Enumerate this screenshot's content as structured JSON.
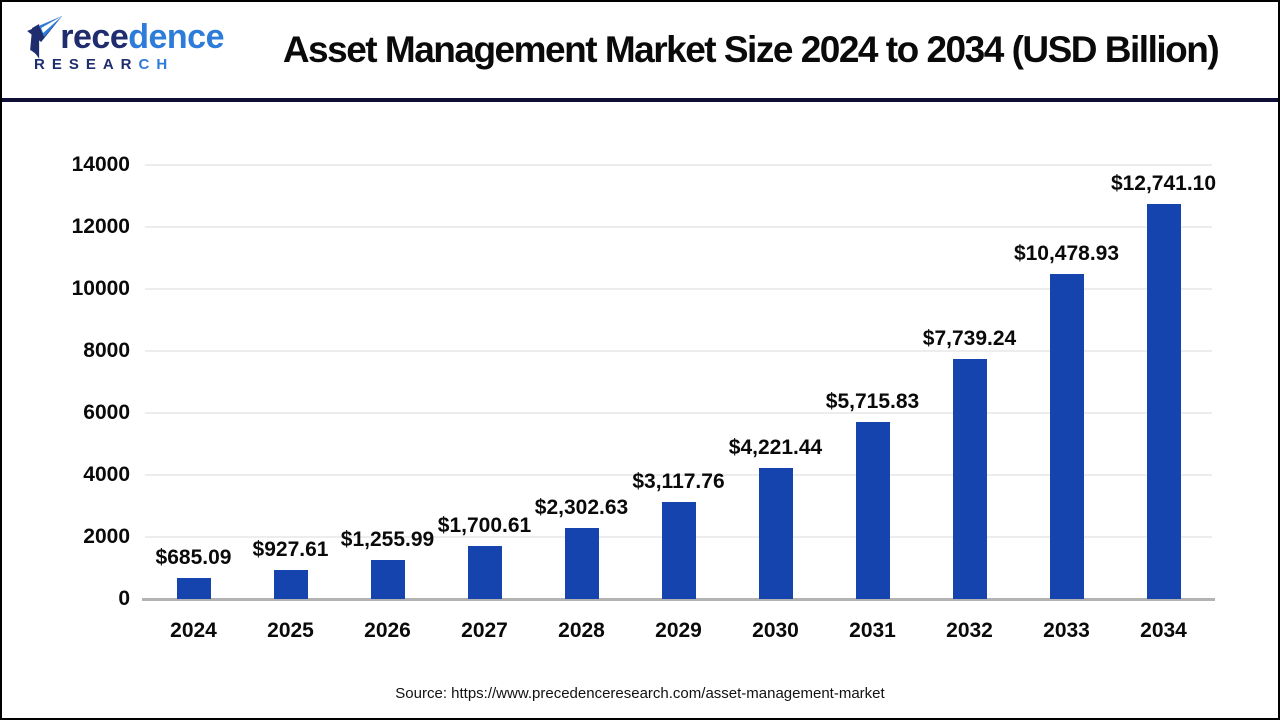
{
  "header": {
    "brand": "Precedence",
    "brand_part1": "rece",
    "brand_part2": "dence",
    "research_part1": "RESEAR",
    "research_part2": "CH",
    "title": "Asset Management Market Size 2024 to 2034 (USD Billion)"
  },
  "logo_colors": {
    "navy": "#1f2d6f",
    "blue": "#2e7cd9"
  },
  "chart_data": {
    "type": "bar",
    "title": "Asset Management Market Size 2024 to 2034 (USD Billion)",
    "categories": [
      "2024",
      "2025",
      "2026",
      "2027",
      "2028",
      "2029",
      "2030",
      "2031",
      "2032",
      "2033",
      "2034"
    ],
    "values": [
      685.09,
      927.61,
      1255.99,
      1700.61,
      2302.63,
      3117.76,
      4221.44,
      5715.83,
      7739.24,
      10478.93,
      12741.1
    ],
    "value_labels": [
      "$685.09",
      "$927.61",
      "$1,255.99",
      "$1,700.61",
      "$2,302.63",
      "$3,117.76",
      "$4,221.44",
      "$5,715.83",
      "$7,739.24",
      "$10,478.93",
      "$12,741.10"
    ],
    "xlabel": "",
    "ylabel": "",
    "ylim": [
      0,
      14000
    ],
    "ytick_step": 2000,
    "ytick_labels": [
      "0",
      "2000",
      "4000",
      "6000",
      "8000",
      "10000",
      "12000",
      "14000"
    ],
    "grid": true,
    "legend": "none",
    "bar_color": "#1544af",
    "gridline_color": "#ededed",
    "axis_line_color": "#b3b3b3"
  },
  "footer": {
    "source": "Source: https://www.precedenceresearch.com/asset-management-market"
  }
}
